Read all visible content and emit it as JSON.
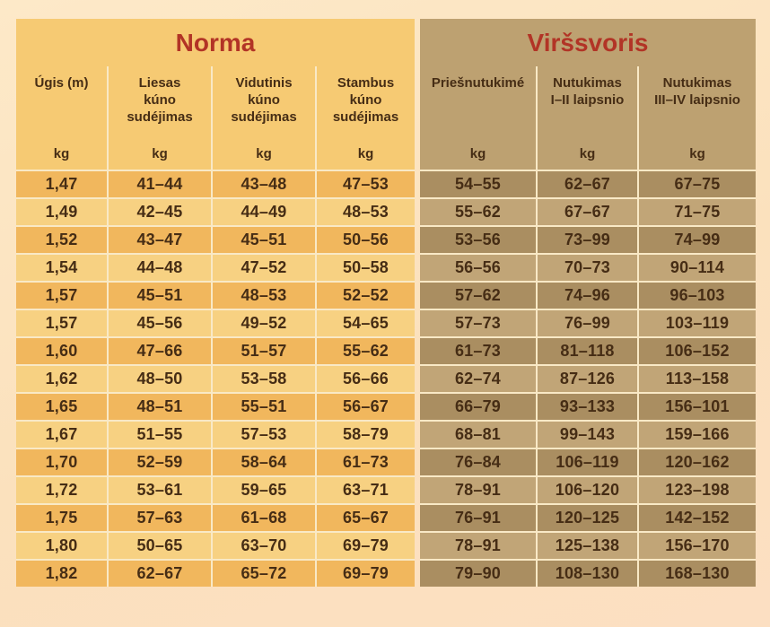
{
  "colors": {
    "page_background": "#fbe2bf",
    "title_red": "#b23426",
    "norma_header": "#f6ca73",
    "norma_row_dark": "#f1b75d",
    "norma_row_light": "#f7d182",
    "virssvoris_header": "#bda171",
    "virssvoris_row_dark": "#aa8e61",
    "virssvoris_row_light": "#c1a577",
    "text_brown": "#462d15",
    "divider": "#f9e9c6"
  },
  "chart_data": {
    "type": "table",
    "sections": [
      {
        "title": "Norma",
        "columns": [
          "Úgis (m)",
          "Liesas\nkúno\nsudéjimas",
          "Vidutinis\nkúno\nsudéjimas",
          "Stambus\nkúno\nsudéjimas"
        ],
        "unit": "kg"
      },
      {
        "title": "Viršsvoris",
        "columns": [
          "Priešnutukimé",
          "Nutukimas\nI–II laipsnio",
          "Nutukimas\nIII–IV laipsnio"
        ],
        "unit": "kg"
      }
    ],
    "rows": [
      {
        "height": "1,47",
        "norma": [
          "41–44",
          "43–48",
          "47–53"
        ],
        "virssvoris": [
          "54–55",
          "62–67",
          "67–75"
        ]
      },
      {
        "height": "1,49",
        "norma": [
          "42–45",
          "44–49",
          "48–53"
        ],
        "virssvoris": [
          "55–62",
          "67–67",
          "71–75"
        ]
      },
      {
        "height": "1,52",
        "norma": [
          "43–47",
          "45–51",
          "50–56"
        ],
        "virssvoris": [
          "53–56",
          "73–99",
          "74–99"
        ]
      },
      {
        "height": "1,54",
        "norma": [
          "44–48",
          "47–52",
          "50–58"
        ],
        "virssvoris": [
          "56–56",
          "70–73",
          "90–114"
        ]
      },
      {
        "height": "1,57",
        "norma": [
          "45–51",
          "48–53",
          "52–52"
        ],
        "virssvoris": [
          "57–62",
          "74–96",
          "96–103"
        ]
      },
      {
        "height": "1,57",
        "norma": [
          "45–56",
          "49–52",
          "54–65"
        ],
        "virssvoris": [
          "57–73",
          "76–99",
          "103–119"
        ]
      },
      {
        "height": "1,60",
        "norma": [
          "47–66",
          "51–57",
          "55–62"
        ],
        "virssvoris": [
          "61–73",
          "81–118",
          "106–152"
        ]
      },
      {
        "height": "1,62",
        "norma": [
          "48–50",
          "53–58",
          "56–66"
        ],
        "virssvoris": [
          "62–74",
          "87–126",
          "113–158"
        ]
      },
      {
        "height": "1,65",
        "norma": [
          "48–51",
          "55–51",
          "56–67"
        ],
        "virssvoris": [
          "66–79",
          "93–133",
          "156–101"
        ]
      },
      {
        "height": "1,67",
        "norma": [
          "51–55",
          "57–53",
          "58–79"
        ],
        "virssvoris": [
          "68–81",
          "99–143",
          "159–166"
        ]
      },
      {
        "height": "1,70",
        "norma": [
          "52–59",
          "58–64",
          "61–73"
        ],
        "virssvoris": [
          "76–84",
          "106–119",
          "120–162"
        ]
      },
      {
        "height": "1,72",
        "norma": [
          "53–61",
          "59–65",
          "63–71"
        ],
        "virssvoris": [
          "78–91",
          "106–120",
          "123–198"
        ]
      },
      {
        "height": "1,75",
        "norma": [
          "57–63",
          "61–68",
          "65–67"
        ],
        "virssvoris": [
          "76–91",
          "120–125",
          "142–152"
        ]
      },
      {
        "height": "1,80",
        "norma": [
          "50–65",
          "63–70",
          "69–79"
        ],
        "virssvoris": [
          "78–91",
          "125–138",
          "156–170"
        ]
      },
      {
        "height": "1,82",
        "norma": [
          "62–67",
          "65–72",
          "69–79"
        ],
        "virssvoris": [
          "79–90",
          "108–130",
          "168–130"
        ]
      }
    ]
  }
}
